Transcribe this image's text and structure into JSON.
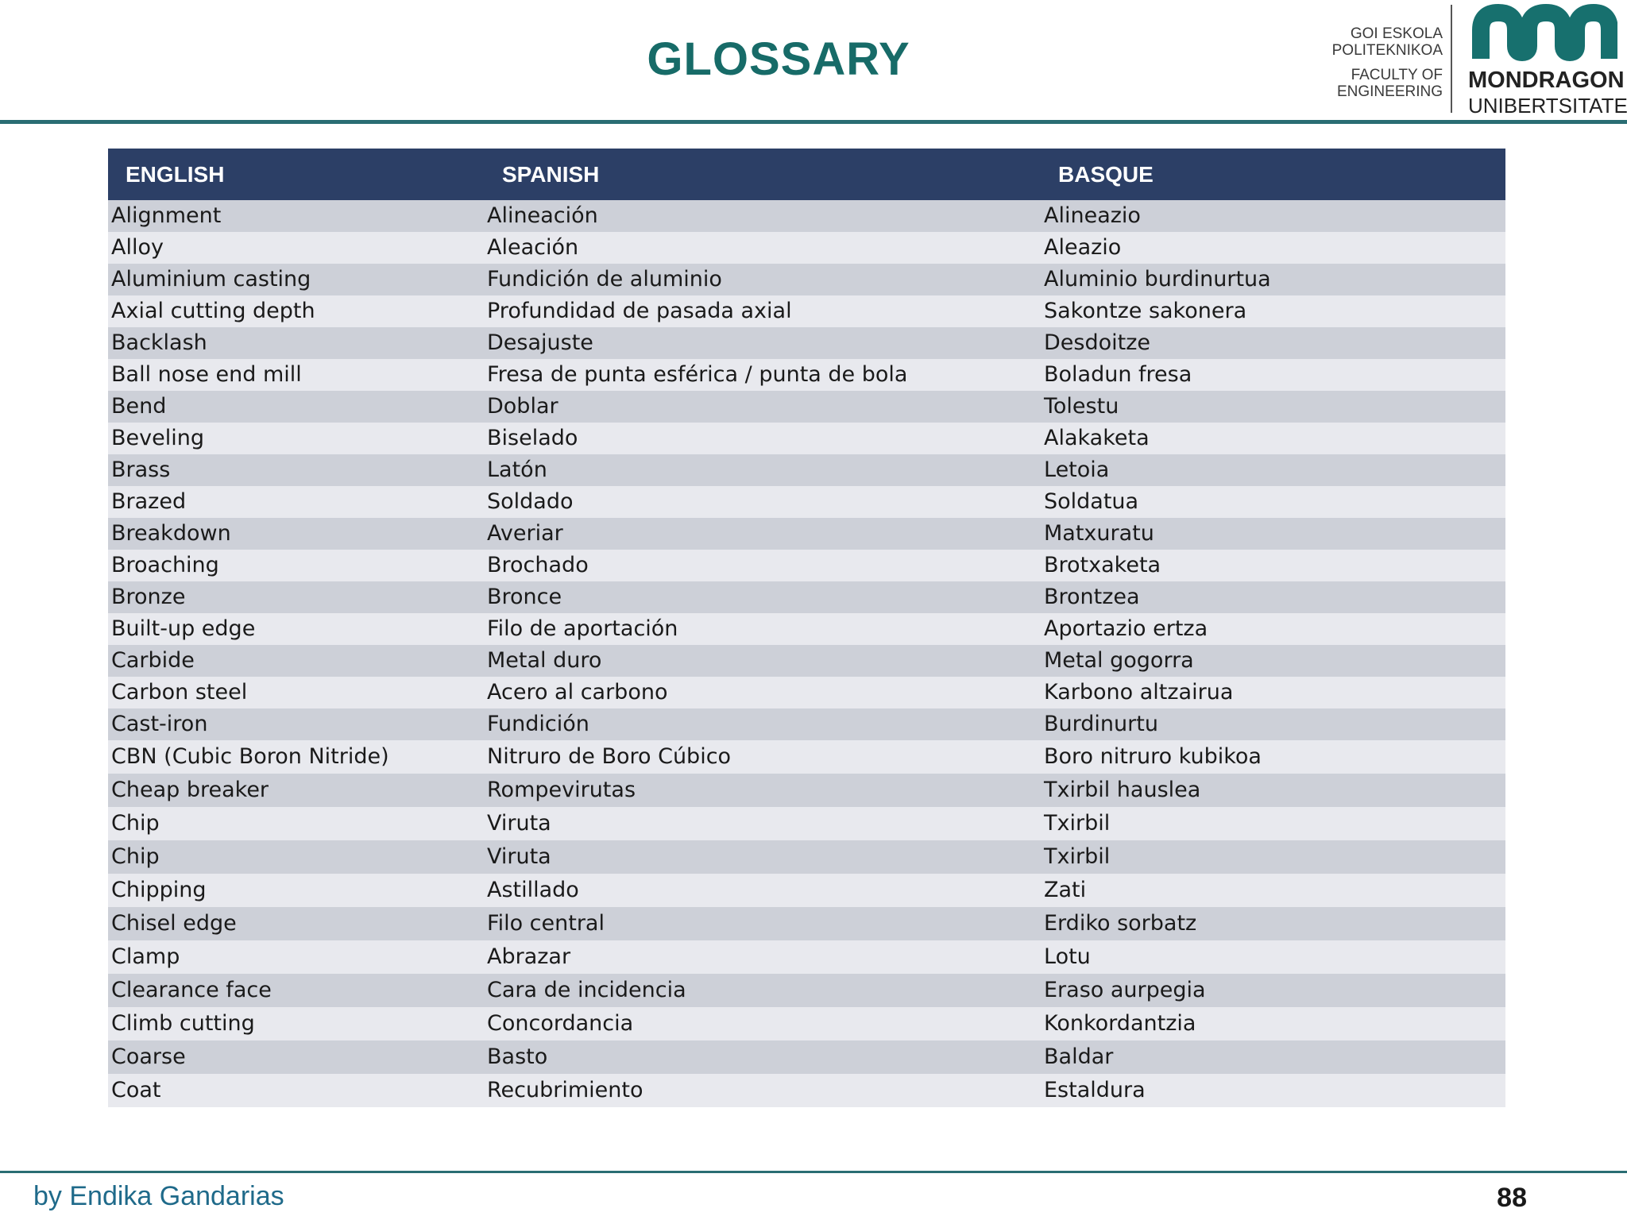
{
  "title": "GLOSSARY",
  "logo": {
    "school_line1": "GOI ESKOLA",
    "school_line2": "POLITEKNIKOA",
    "faculty_line1": "FACULTY OF",
    "faculty_line2": "ENGINEERING",
    "uni_line1": "MONDRAGON",
    "uni_line2": "UNIBERTSITATEA",
    "brand_color": "#17706e"
  },
  "table": {
    "headers": [
      "ENGLISH",
      "SPANISH",
      "BASQUE"
    ],
    "rows": [
      [
        "Alignment",
        "Alineación",
        "Alineazio"
      ],
      [
        "Alloy",
        "Aleación",
        "Aleazio"
      ],
      [
        "Aluminium casting",
        "Fundición de aluminio",
        "Aluminio burdinurtua"
      ],
      [
        "Axial cutting depth",
        "Profundidad de pasada axial",
        "Sakontze sakonera"
      ],
      [
        "Backlash",
        "Desajuste",
        "Desdoitze"
      ],
      [
        "Ball nose end mill",
        "Fresa de punta esférica / punta de bola",
        "Boladun fresa"
      ],
      [
        "Bend",
        "Doblar",
        "Tolestu"
      ],
      [
        "Beveling",
        "Biselado",
        "Alakaketa"
      ],
      [
        "Brass",
        "Latón",
        "Letoia"
      ],
      [
        "Brazed",
        "Soldado",
        "Soldatua"
      ],
      [
        "Breakdown",
        "Averiar",
        "Matxuratu"
      ],
      [
        "Broaching",
        "Brochado",
        "Brotxaketa"
      ],
      [
        "Bronze",
        "Bronce",
        "Brontzea"
      ],
      [
        "Built-up edge",
        "Filo de aportación",
        "Aportazio ertza"
      ],
      [
        "Carbide",
        "Metal duro",
        "Metal gogorra"
      ],
      [
        "Carbon steel",
        "Acero al carbono",
        "Karbono altzairua"
      ],
      [
        "Cast-iron",
        "Fundición",
        "Burdinurtu"
      ],
      [
        "CBN (Cubic Boron Nitride)",
        "Nitruro de Boro Cúbico",
        "Boro nitruro kubikoa"
      ],
      [
        "Cheap breaker",
        "Rompevirutas",
        "Txirbil hauslea"
      ],
      [
        "Chip",
        "Viruta",
        "Txirbil"
      ],
      [
        "Chip",
        "Viruta",
        "Txirbil"
      ],
      [
        "Chipping",
        "Astillado",
        "Zati"
      ],
      [
        "Chisel edge",
        "Filo central",
        "Erdiko sorbatz"
      ],
      [
        "Clamp",
        "Abrazar",
        "Lotu"
      ],
      [
        "Clearance face",
        "Cara de incidencia",
        "Eraso aurpegia"
      ],
      [
        "Climb cutting",
        "Concordancia",
        "Konkordantzia"
      ],
      [
        "Coarse",
        "Basto",
        "Baldar"
      ],
      [
        "Coat",
        "Recubrimiento",
        "Estaldura"
      ]
    ]
  },
  "footer": {
    "author": "by Endika Gandarias",
    "page_number": "88"
  }
}
